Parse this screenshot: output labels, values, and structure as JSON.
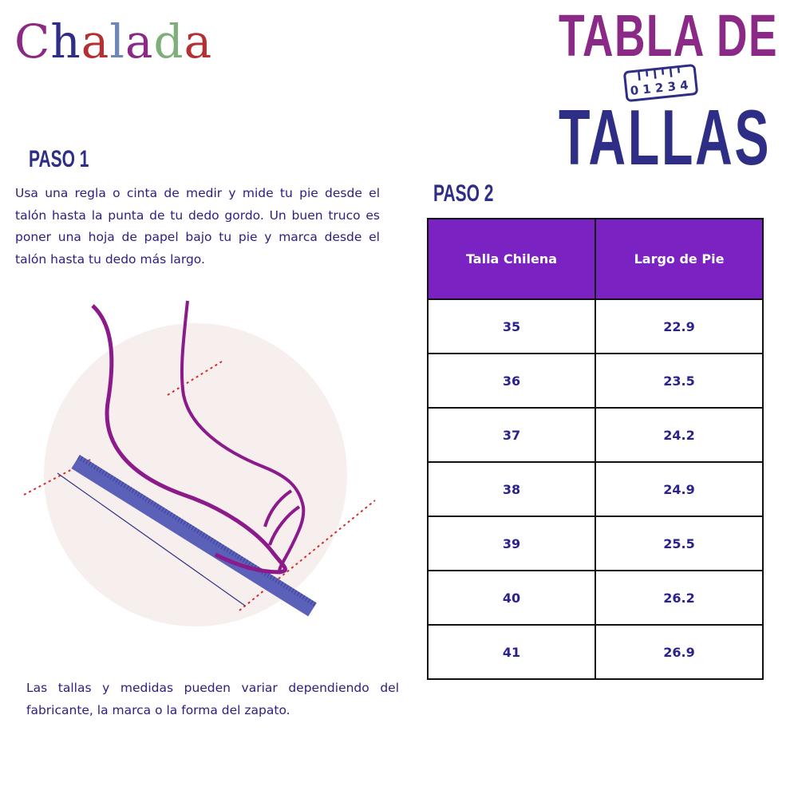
{
  "logo": {
    "text": "Chalada",
    "letters": [
      {
        "c": "C",
        "color": "#8b2a86"
      },
      {
        "c": "h",
        "color": "#2e2e86"
      },
      {
        "c": "a",
        "color": "#b53030"
      },
      {
        "c": "l",
        "color": "#6f86b8"
      },
      {
        "c": "a",
        "color": "#8b2a86"
      },
      {
        "c": "d",
        "color": "#7fae7a"
      },
      {
        "c": "a",
        "color": "#b53030"
      }
    ]
  },
  "title": {
    "line1": "TABLA DE",
    "line2": "TALLAS",
    "ruler_numbers": "0 1 2 3 4"
  },
  "step1": {
    "heading": "PASO 1",
    "text": "Usa una regla o cinta de medir y mide tu pie desde el talón hasta la punta de tu dedo gordo. Un buen truco es poner una hoja de papel bajo tu pie y marca desde el talón hasta tu dedo más largo."
  },
  "note": "Las tallas y medidas pueden variar dependiendo del fabricante, la marca o la forma del zapato.",
  "step2": {
    "heading": "PASO 2",
    "table": {
      "headers": [
        "Talla Chilena",
        "Largo de Pie"
      ],
      "rows": [
        [
          "35",
          "22.9"
        ],
        [
          "36",
          "23.5"
        ],
        [
          "37",
          "24.2"
        ],
        [
          "38",
          "24.9"
        ],
        [
          "39",
          "25.5"
        ],
        [
          "40",
          "26.2"
        ],
        [
          "41",
          "26.9"
        ]
      ]
    }
  },
  "colors": {
    "purple": "#8b2a86",
    "navy": "#2e2e86",
    "header_bg": "#7a22c2"
  }
}
